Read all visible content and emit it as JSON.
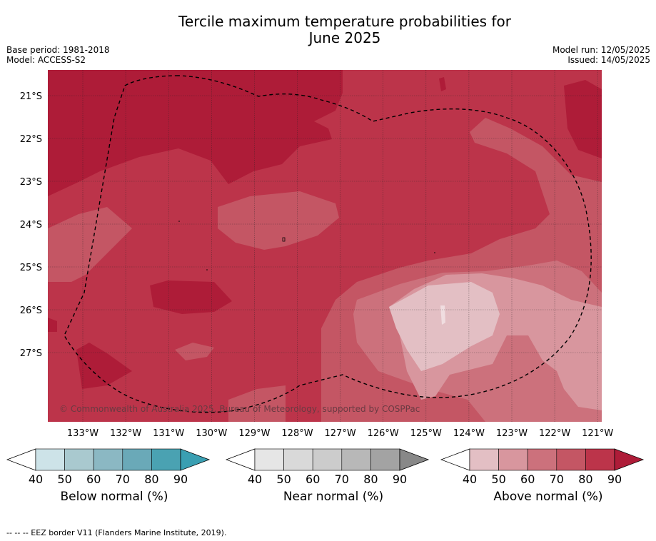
{
  "title_line1": "Tercile maximum temperature probabilities for",
  "title_line2": "June 2025",
  "base_period": "Base period: 1981-2018",
  "model": "Model: ACCESS-S2",
  "model_run": "Model run: 12/05/2025",
  "issued": "Issued: 14/05/2025",
  "credit": "© Commonwealth of Australia 2025, Bureau of Meteorology, supported by COSPPac",
  "lat_labels": [
    "21°S",
    "22°S",
    "23°S",
    "24°S",
    "25°S",
    "26°S",
    "27°S"
  ],
  "lon_labels": [
    "133°W",
    "132°W",
    "131°W",
    "130°W",
    "129°W",
    "128°W",
    "127°W",
    "126°W",
    "125°W",
    "124°W",
    "123°W",
    "122°W",
    "121°W"
  ],
  "colorbars": [
    {
      "title": "Below normal (%)",
      "ticks": [
        "40",
        "50",
        "60",
        "70",
        "80",
        "90"
      ],
      "colors": [
        "#cde3e8",
        "#a9c9cf",
        "#8bb8c3",
        "#6aa9b8",
        "#4aa2b2"
      ],
      "extend": "#3a9fb2"
    },
    {
      "title": "Near normal (%)",
      "ticks": [
        "40",
        "50",
        "60",
        "70",
        "80",
        "90"
      ],
      "colors": [
        "#e6e6e6",
        "#d9d9d9",
        "#cccccc",
        "#b8b8b8",
        "#a3a3a3"
      ],
      "extend": "#888888"
    },
    {
      "title": "Above normal (%)",
      "ticks": [
        "40",
        "50",
        "60",
        "70",
        "80",
        "90"
      ],
      "colors": [
        "#e3bfc4",
        "#d8969e",
        "#cc717c",
        "#c45664",
        "#bc344a"
      ],
      "extend": "#ae1c38"
    }
  ],
  "footer": "--  --  -- EEZ border V11 (Flanders Marine Institute, 2019)."
}
